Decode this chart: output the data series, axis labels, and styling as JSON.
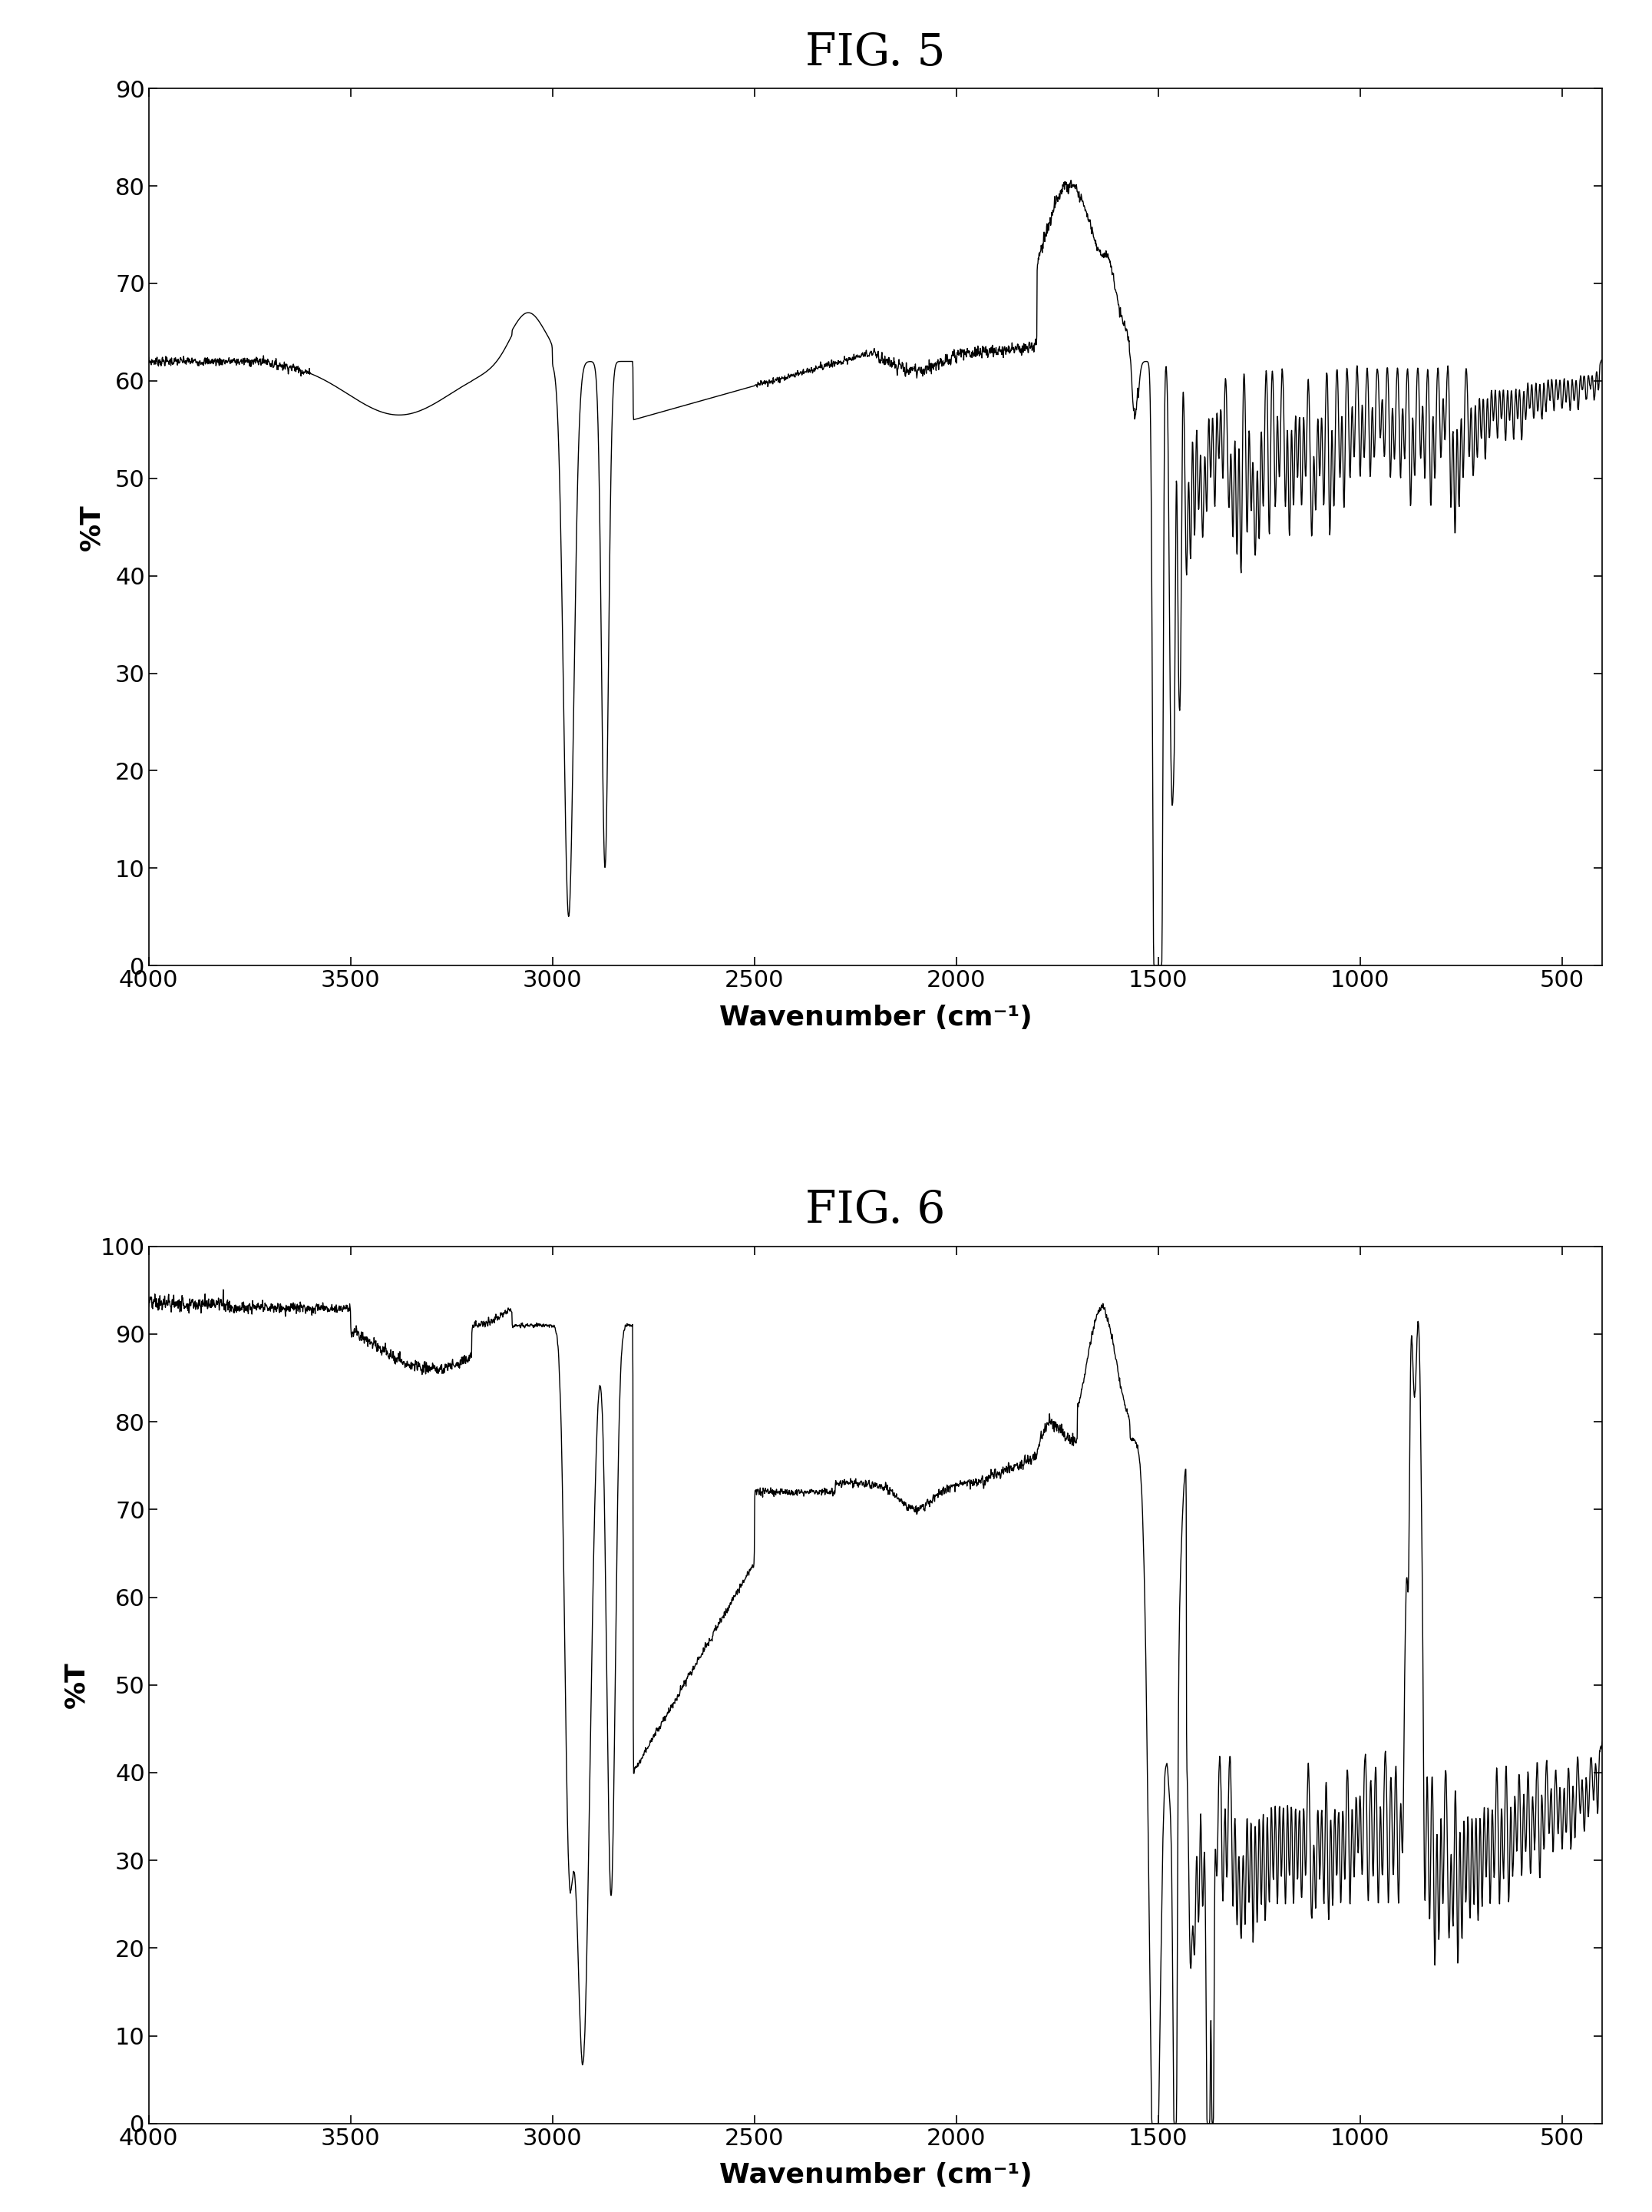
{
  "fig5_title": "FIG. 5",
  "fig6_title": "FIG. 6",
  "xlabel": "Wavenumber (cm⁻¹)",
  "ylabel": "%T",
  "fig5_xlim": [
    4000,
    400
  ],
  "fig6_xlim": [
    4000,
    400
  ],
  "fig5_ylim": [
    0,
    90
  ],
  "fig6_ylim": [
    0,
    100
  ],
  "fig5_yticks": [
    0,
    10,
    20,
    30,
    40,
    50,
    60,
    70,
    80,
    90
  ],
  "fig6_yticks": [
    0,
    10,
    20,
    30,
    40,
    50,
    60,
    70,
    80,
    90,
    100
  ],
  "xticks": [
    4000,
    3500,
    3000,
    2500,
    2000,
    1500,
    1000,
    500
  ],
  "line_color": "#000000",
  "background_color": "#ffffff",
  "title_fontsize": 42,
  "axis_label_fontsize": 26,
  "tick_fontsize": 22
}
